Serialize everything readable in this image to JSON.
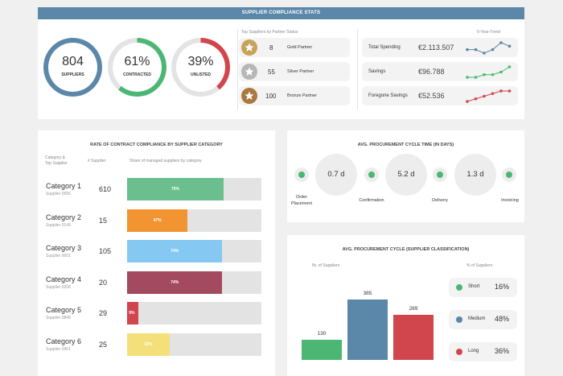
{
  "header": {
    "title": "SUPPLIER COMPLIANCE STATS"
  },
  "rings": [
    {
      "value": "804",
      "label": "SUPPLIERS",
      "fraction": 1.0,
      "color": "#5b87a8"
    },
    {
      "value": "61%",
      "label": "CONTRACTED",
      "fraction": 0.61,
      "color": "#4cb774"
    },
    {
      "value": "39%",
      "label": "UNLISTED",
      "fraction": 0.39,
      "color": "#d1454d"
    }
  ],
  "partners": {
    "caption": "Top Suppliers by Partner Status",
    "items": [
      {
        "count": "8",
        "label": "Gold Partner",
        "color": "#c9a25a"
      },
      {
        "count": "55",
        "label": "Silver Partner",
        "color": "#b7b7b7"
      },
      {
        "count": "100",
        "label": "Bronze Partner",
        "color": "#a9773f"
      }
    ]
  },
  "kpis": {
    "trend_caption": "5-Year-Trend",
    "items": [
      {
        "label": "Total Spending",
        "value": "€2.113.507",
        "color": "#5b87a8",
        "trend": [
          3,
          3,
          2,
          3,
          5,
          4
        ]
      },
      {
        "label": "Savings",
        "value": "€96.788",
        "color": "#4cb774",
        "trend": [
          1,
          1,
          2,
          2,
          3,
          5
        ]
      },
      {
        "label": "Foregone Savings",
        "value": "€52.536",
        "color": "#d1454d",
        "trend": [
          1,
          2,
          3,
          4,
          5,
          5
        ]
      }
    ]
  },
  "compliance": {
    "title": "RATE OF CONTRACT COMPLIANCE BY SUPPLIER CATEGORY",
    "col_category": "Category &",
    "col_category2": "Top Supplier",
    "col_count": "# Supplier",
    "col_share": "Share of managed suppliers by category",
    "rows": [
      {
        "name": "Category 1",
        "sub": "Supplier 0556",
        "count": "610",
        "pct_label": "75%",
        "pct": 75,
        "color": "#6bbf8e"
      },
      {
        "name": "Category 2",
        "sub": "Supplier 0149",
        "count": "15",
        "pct_label": "47%",
        "pct": 47,
        "color": "#f29432"
      },
      {
        "name": "Category 3",
        "sub": "Supplier 0001",
        "count": "105",
        "pct_label": "74%",
        "pct": 74,
        "color": "#85c9f2"
      },
      {
        "name": "Category 4",
        "sub": "Supplier 0208",
        "count": "20",
        "pct_label": "74%",
        "pct": 74,
        "color": "#a34a60"
      },
      {
        "name": "Category 5",
        "sub": "Supplier 0848",
        "count": "29",
        "pct_label": "9%",
        "pct": 9,
        "color": "#d1454d"
      },
      {
        "name": "Category 6",
        "sub": "Supplier 0401",
        "count": "25",
        "pct_label": "33%",
        "pct": 33,
        "color": "#f4e07a"
      }
    ]
  },
  "cycle": {
    "title": "AVG. PROCUREMENT CYCLE TIME (IN DAYS)",
    "durations": [
      "0.7 d",
      "5.2 d",
      "1.3 d"
    ],
    "steps": [
      "Order",
      "Placement",
      "Confirmation",
      "Delivery",
      "Invoicing"
    ]
  },
  "classification": {
    "title": "AVG. PROCUREMENT CYCLE (SUPPLIER CLASSIFICATION)",
    "left_caption": "Nr. of Suppliers",
    "right_caption": "% of Suppliers"
  },
  "chart_data": {
    "type": "bar",
    "title": "AVG. PROCUREMENT CYCLE (SUPPLIER CLASSIFICATION)",
    "categories": [
      "Short",
      "Medium",
      "Long"
    ],
    "values": [
      130,
      385,
      289
    ],
    "colors": [
      "#4cb774",
      "#5b87a8",
      "#d1454d"
    ],
    "percent_of_suppliers": [
      "16%",
      "48%",
      "36%"
    ],
    "ylim": [
      0,
      385
    ]
  }
}
